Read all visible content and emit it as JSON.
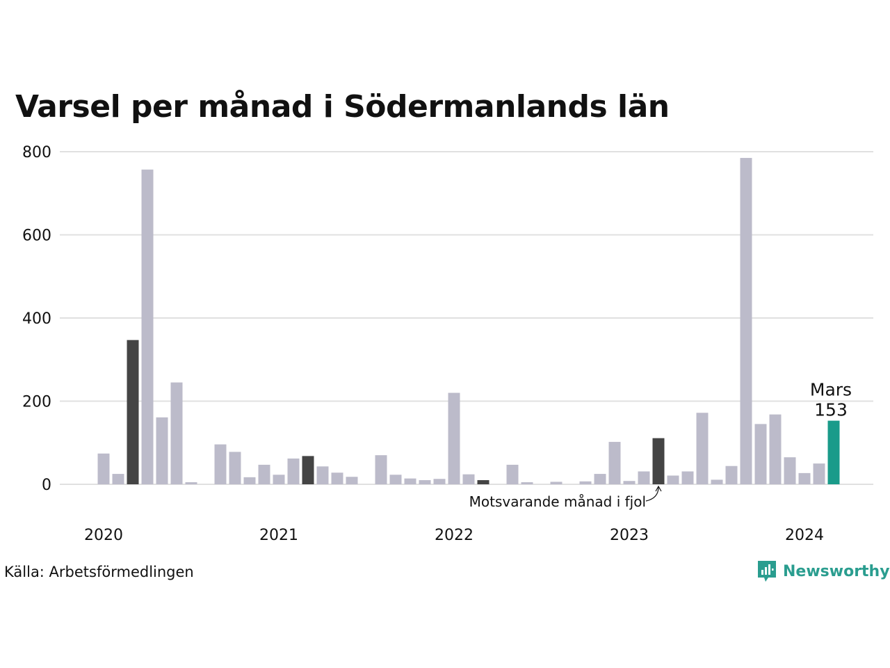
{
  "title": "Varsel per månad i Södermanlands län",
  "source": "Källa: Arbetsförmedlingen",
  "brand": {
    "name": "Newsworthy",
    "color": "#2a9d8f",
    "icon": "newsworthy-logo-icon"
  },
  "colors": {
    "default": "#bcbbca",
    "previous_year": "#444444",
    "current": "#1a9b8a",
    "grid": "#e0e0e0"
  },
  "chart_data": {
    "type": "bar",
    "ylim": [
      0,
      800
    ],
    "yticks": [
      0,
      200,
      400,
      600,
      800
    ],
    "grid": true,
    "year_labels": [
      "2020",
      "2021",
      "2022",
      "2023",
      "2024"
    ],
    "dates": [
      "2020-01",
      "2020-02",
      "2020-03",
      "2020-04",
      "2020-05",
      "2020-06",
      "2020-07",
      "2020-08",
      "2020-09",
      "2020-10",
      "2020-11",
      "2020-12",
      "2021-01",
      "2021-02",
      "2021-03",
      "2021-04",
      "2021-05",
      "2021-06",
      "2021-07",
      "2021-08",
      "2021-09",
      "2021-10",
      "2021-11",
      "2021-12",
      "2022-01",
      "2022-02",
      "2022-03",
      "2022-04",
      "2022-05",
      "2022-06",
      "2022-07",
      "2022-08",
      "2022-09",
      "2022-10",
      "2022-11",
      "2022-12",
      "2023-01",
      "2023-02",
      "2023-03",
      "2023-04",
      "2023-05",
      "2023-06",
      "2023-07",
      "2023-08",
      "2023-09",
      "2023-10",
      "2023-11",
      "2023-12",
      "2024-01",
      "2024-02",
      "2024-03"
    ],
    "values": [
      74,
      25,
      347,
      757,
      161,
      245,
      5,
      0,
      96,
      78,
      17,
      47,
      23,
      62,
      68,
      43,
      28,
      18,
      0,
      70,
      23,
      14,
      10,
      13,
      220,
      24,
      10,
      0,
      47,
      5,
      0,
      6,
      0,
      7,
      25,
      102,
      8,
      31,
      111,
      21,
      31,
      172,
      11,
      44,
      785,
      145,
      168,
      65,
      27,
      50,
      153
    ],
    "highlight_previous_year": [
      2,
      14,
      26,
      38
    ],
    "current_index": 50,
    "current_label": {
      "month": "Mars",
      "value": "153"
    },
    "annotation": "Motsvarande månad i fjol"
  }
}
